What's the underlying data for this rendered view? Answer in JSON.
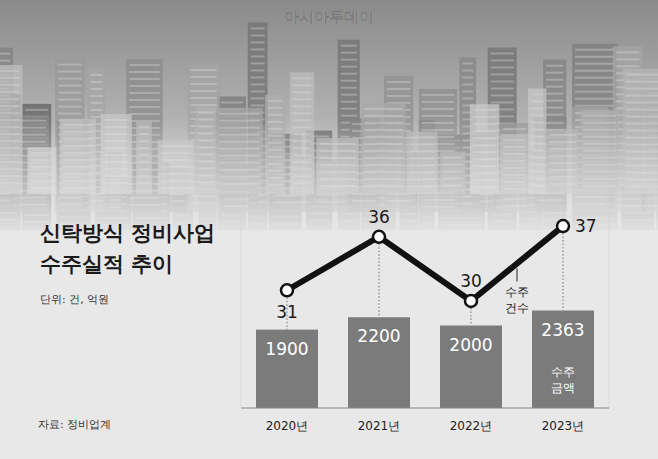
{
  "chart_data": {
    "type": "bar",
    "title": "신탁방식 정비사업 수주실적 추이",
    "subtitle": "단위: 건, 억원",
    "annotations": [
      "자료: 정비업계",
      "아시아투데이"
    ],
    "categories": [
      "2020년",
      "2021년",
      "2022년",
      "2023년"
    ],
    "series": [
      {
        "name": "수주 금액",
        "type": "bar",
        "color": "#7b7b7b",
        "values": [
          1900,
          2200,
          2000,
          2363
        ]
      },
      {
        "name": "수주 건수",
        "type": "line",
        "axis": "y2",
        "color": "#111111",
        "marker": "circle",
        "values": [
          31,
          36,
          30,
          37
        ]
      }
    ],
    "ylim": [
      0,
      4800
    ],
    "yticks": [],
    "y2lim": [
      20,
      38.5
    ],
    "y2ticks": [],
    "grid": false,
    "data_labels": true,
    "tick_labels": "x"
  }
}
